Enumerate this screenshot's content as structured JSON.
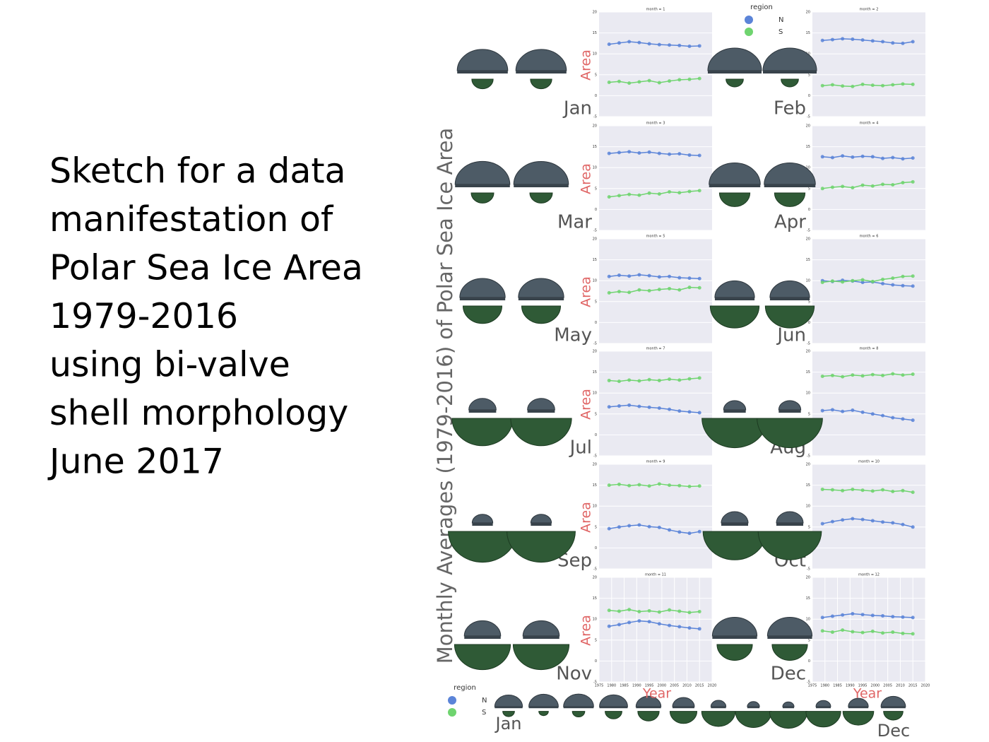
{
  "slide": {
    "text": [
      "Sketch for a data",
      "manifestation of",
      "Polar Sea Ice Area",
      "1979-2016",
      "using bi-valve",
      "shell morphology",
      "June 2017"
    ]
  },
  "figure": {
    "ylabel": "Monthly Averages (1979-2016) of Polar Sea Ice Area",
    "legends": [
      {
        "title": "region",
        "items": [
          {
            "name": "N",
            "color": "#5b84d8"
          },
          {
            "name": "S",
            "color": "#6fd46f"
          }
        ]
      },
      {
        "title": "region",
        "items": [
          {
            "name": "N",
            "color": "#5b84d8"
          },
          {
            "name": "S",
            "color": "#6fd46f"
          }
        ]
      }
    ],
    "strip_labels": [
      "Jan",
      "Dec"
    ]
  },
  "chart_data": [
    {
      "type": "scatter",
      "title": "month = 1",
      "label": "Jan",
      "ylabel": "Area",
      "x": [
        1979,
        1983,
        1987,
        1991,
        1995,
        1999,
        2003,
        2007,
        2011,
        2015
      ],
      "xlim": [
        1975,
        2020
      ],
      "ylim": [
        -5,
        20
      ],
      "yticks": [
        -5,
        0,
        5,
        10,
        15,
        20
      ],
      "grid": true,
      "series": [
        {
          "name": "N",
          "color": "#5b84d8",
          "values": [
            12.3,
            12.6,
            12.9,
            12.7,
            12.4,
            12.2,
            12.1,
            12.0,
            11.8,
            11.9
          ]
        },
        {
          "name": "S",
          "color": "#6fd46f",
          "values": [
            3.2,
            3.4,
            3.0,
            3.3,
            3.6,
            3.1,
            3.5,
            3.8,
            3.9,
            4.1
          ]
        }
      ]
    },
    {
      "type": "scatter",
      "title": "month = 2",
      "label": "Feb",
      "x": [
        1979,
        1983,
        1987,
        1991,
        1995,
        1999,
        2003,
        2007,
        2011,
        2015
      ],
      "xlim": [
        1975,
        2020
      ],
      "ylim": [
        -5,
        20
      ],
      "yticks": [
        -5,
        0,
        5,
        10,
        15,
        20
      ],
      "grid": true,
      "series": [
        {
          "name": "N",
          "color": "#5b84d8",
          "values": [
            13.2,
            13.4,
            13.6,
            13.5,
            13.3,
            13.1,
            12.9,
            12.6,
            12.5,
            12.9
          ]
        },
        {
          "name": "S",
          "color": "#6fd46f",
          "values": [
            2.4,
            2.6,
            2.3,
            2.2,
            2.7,
            2.5,
            2.4,
            2.6,
            2.8,
            2.7
          ]
        }
      ]
    },
    {
      "type": "scatter",
      "title": "month = 3",
      "label": "Mar",
      "ylabel": "Area",
      "x": [
        1979,
        1983,
        1987,
        1991,
        1995,
        1999,
        2003,
        2007,
        2011,
        2015
      ],
      "xlim": [
        1975,
        2020
      ],
      "ylim": [
        -5,
        20
      ],
      "yticks": [
        -5,
        0,
        5,
        10,
        15,
        20
      ],
      "grid": true,
      "series": [
        {
          "name": "N",
          "color": "#5b84d8",
          "values": [
            13.4,
            13.6,
            13.8,
            13.5,
            13.7,
            13.4,
            13.2,
            13.3,
            13.0,
            12.9
          ]
        },
        {
          "name": "S",
          "color": "#6fd46f",
          "values": [
            3.0,
            3.3,
            3.6,
            3.4,
            3.9,
            3.7,
            4.2,
            4.0,
            4.3,
            4.5
          ]
        }
      ]
    },
    {
      "type": "scatter",
      "title": "month = 4",
      "label": "Apr",
      "x": [
        1979,
        1983,
        1987,
        1991,
        1995,
        1999,
        2003,
        2007,
        2011,
        2015
      ],
      "xlim": [
        1975,
        2020
      ],
      "ylim": [
        -5,
        20
      ],
      "yticks": [
        -5,
        0,
        5,
        10,
        15,
        20
      ],
      "grid": true,
      "series": [
        {
          "name": "N",
          "color": "#5b84d8",
          "values": [
            12.6,
            12.4,
            12.8,
            12.5,
            12.7,
            12.6,
            12.2,
            12.4,
            12.1,
            12.3
          ]
        },
        {
          "name": "S",
          "color": "#6fd46f",
          "values": [
            5.0,
            5.3,
            5.5,
            5.2,
            5.8,
            5.6,
            6.0,
            5.9,
            6.4,
            6.6
          ]
        }
      ]
    },
    {
      "type": "scatter",
      "title": "month = 5",
      "label": "May",
      "ylabel": "Area",
      "x": [
        1979,
        1983,
        1987,
        1991,
        1995,
        1999,
        2003,
        2007,
        2011,
        2015
      ],
      "xlim": [
        1975,
        2020
      ],
      "ylim": [
        -5,
        20
      ],
      "yticks": [
        -5,
        0,
        5,
        10,
        15,
        20
      ],
      "grid": true,
      "series": [
        {
          "name": "N",
          "color": "#5b84d8",
          "values": [
            11.0,
            11.3,
            11.1,
            11.4,
            11.2,
            10.9,
            11.0,
            10.7,
            10.6,
            10.5
          ]
        },
        {
          "name": "S",
          "color": "#6fd46f",
          "values": [
            7.1,
            7.4,
            7.2,
            7.8,
            7.6,
            7.9,
            8.1,
            7.8,
            8.4,
            8.3
          ]
        }
      ]
    },
    {
      "type": "scatter",
      "title": "month = 6",
      "label": "Jun",
      "x": [
        1979,
        1983,
        1987,
        1991,
        1995,
        1999,
        2003,
        2007,
        2011,
        2015
      ],
      "xlim": [
        1975,
        2020
      ],
      "ylim": [
        -5,
        20
      ],
      "yticks": [
        -5,
        0,
        5,
        10,
        15,
        20
      ],
      "grid": true,
      "series": [
        {
          "name": "N",
          "color": "#5b84d8",
          "values": [
            10.0,
            9.8,
            10.1,
            9.9,
            9.6,
            9.7,
            9.3,
            9.0,
            8.8,
            8.7
          ]
        },
        {
          "name": "S",
          "color": "#6fd46f",
          "values": [
            9.6,
            9.9,
            9.7,
            10.0,
            10.2,
            9.8,
            10.3,
            10.6,
            11.0,
            11.1
          ]
        }
      ]
    },
    {
      "type": "scatter",
      "title": "month = 7",
      "label": "Jul",
      "ylabel": "Area",
      "x": [
        1979,
        1983,
        1987,
        1991,
        1995,
        1999,
        2003,
        2007,
        2011,
        2015
      ],
      "xlim": [
        1975,
        2020
      ],
      "ylim": [
        -5,
        20
      ],
      "yticks": [
        -5,
        0,
        5,
        10,
        15,
        20
      ],
      "grid": true,
      "series": [
        {
          "name": "N",
          "color": "#5b84d8",
          "values": [
            6.7,
            6.9,
            7.1,
            6.8,
            6.6,
            6.4,
            6.1,
            5.7,
            5.5,
            5.3
          ]
        },
        {
          "name": "S",
          "color": "#6fd46f",
          "values": [
            13.0,
            12.8,
            13.1,
            12.9,
            13.2,
            13.0,
            13.3,
            13.1,
            13.4,
            13.6
          ]
        }
      ]
    },
    {
      "type": "scatter",
      "title": "month = 8",
      "label": "Aug",
      "x": [
        1979,
        1983,
        1987,
        1991,
        1995,
        1999,
        2003,
        2007,
        2011,
        2015
      ],
      "xlim": [
        1975,
        2020
      ],
      "ylim": [
        -5,
        20
      ],
      "yticks": [
        -5,
        0,
        5,
        10,
        15,
        20
      ],
      "grid": true,
      "series": [
        {
          "name": "N",
          "color": "#5b84d8",
          "values": [
            5.8,
            6.0,
            5.6,
            5.9,
            5.4,
            5.0,
            4.6,
            4.1,
            3.8,
            3.5
          ]
        },
        {
          "name": "S",
          "color": "#6fd46f",
          "values": [
            14.0,
            14.2,
            13.9,
            14.3,
            14.1,
            14.4,
            14.2,
            14.6,
            14.3,
            14.5
          ]
        }
      ]
    },
    {
      "type": "scatter",
      "title": "month = 9",
      "label": "Sep",
      "ylabel": "Area",
      "x": [
        1979,
        1983,
        1987,
        1991,
        1995,
        1999,
        2003,
        2007,
        2011,
        2015
      ],
      "xlim": [
        1975,
        2020
      ],
      "ylim": [
        -5,
        20
      ],
      "yticks": [
        -5,
        0,
        5,
        10,
        15,
        20
      ],
      "grid": true,
      "series": [
        {
          "name": "N",
          "color": "#5b84d8",
          "values": [
            4.6,
            5.0,
            5.3,
            5.5,
            5.1,
            4.9,
            4.3,
            3.8,
            3.5,
            3.9
          ]
        },
        {
          "name": "S",
          "color": "#6fd46f",
          "values": [
            15.0,
            15.2,
            14.9,
            15.1,
            14.8,
            15.3,
            15.0,
            14.9,
            14.7,
            14.8
          ]
        }
      ]
    },
    {
      "type": "scatter",
      "title": "month = 10",
      "label": "Oct",
      "x": [
        1979,
        1983,
        1987,
        1991,
        1995,
        1999,
        2003,
        2007,
        2011,
        2015
      ],
      "xlim": [
        1975,
        2020
      ],
      "ylim": [
        -5,
        20
      ],
      "yticks": [
        -5,
        0,
        5,
        10,
        15,
        20
      ],
      "grid": true,
      "series": [
        {
          "name": "N",
          "color": "#5b84d8",
          "values": [
            5.8,
            6.3,
            6.7,
            7.0,
            6.8,
            6.5,
            6.2,
            6.0,
            5.6,
            5.0
          ]
        },
        {
          "name": "S",
          "color": "#6fd46f",
          "values": [
            14.0,
            13.9,
            13.7,
            14.0,
            13.8,
            13.6,
            13.9,
            13.5,
            13.7,
            13.3
          ]
        }
      ]
    },
    {
      "type": "scatter",
      "title": "month = 11",
      "label": "Nov",
      "ylabel": "Area",
      "xlabel": "Year",
      "x": [
        1979,
        1983,
        1987,
        1991,
        1995,
        1999,
        2003,
        2007,
        2011,
        2015
      ],
      "xlim": [
        1975,
        2020
      ],
      "xticks": [
        1975,
        1980,
        1985,
        1990,
        1995,
        2000,
        2005,
        2010,
        2015,
        2020
      ],
      "ylim": [
        -5,
        20
      ],
      "yticks": [
        -5,
        0,
        5,
        10,
        15,
        20
      ],
      "grid": true,
      "series": [
        {
          "name": "N",
          "color": "#5b84d8",
          "values": [
            8.3,
            8.7,
            9.2,
            9.6,
            9.4,
            8.9,
            8.5,
            8.2,
            7.9,
            7.7
          ]
        },
        {
          "name": "S",
          "color": "#6fd46f",
          "values": [
            12.1,
            11.9,
            12.3,
            11.8,
            12.0,
            11.7,
            12.2,
            11.9,
            11.6,
            11.8
          ]
        }
      ]
    },
    {
      "type": "scatter",
      "title": "month = 12",
      "label": "Dec",
      "xlabel": "Year",
      "x": [
        1979,
        1983,
        1987,
        1991,
        1995,
        1999,
        2003,
        2007,
        2011,
        2015
      ],
      "xlim": [
        1975,
        2020
      ],
      "xticks": [
        1975,
        1980,
        1985,
        1990,
        1995,
        2000,
        2005,
        2010,
        2015,
        2020
      ],
      "ylim": [
        -5,
        20
      ],
      "yticks": [
        -5,
        0,
        5,
        10,
        15,
        20
      ],
      "grid": true,
      "series": [
        {
          "name": "N",
          "color": "#5b84d8",
          "values": [
            10.4,
            10.7,
            11.0,
            11.3,
            11.1,
            10.9,
            10.8,
            10.6,
            10.5,
            10.4
          ]
        },
        {
          "name": "S",
          "color": "#6fd46f",
          "values": [
            7.2,
            6.9,
            7.4,
            7.0,
            6.8,
            7.1,
            6.7,
            6.9,
            6.6,
            6.5
          ]
        }
      ]
    }
  ]
}
